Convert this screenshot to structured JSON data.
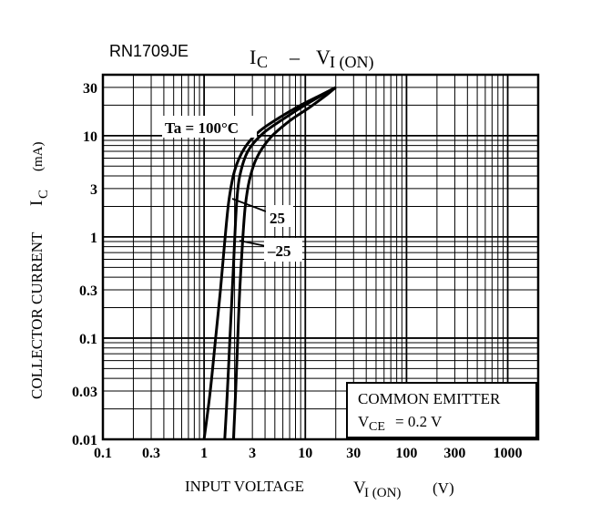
{
  "chart_data": {
    "type": "line",
    "part_number": "RN1709JE",
    "title": {
      "main_symbol": "I",
      "main_sub": "C",
      "separator": "–",
      "rhs_symbol": "V",
      "rhs_sub": "I (ON)"
    },
    "xlabel": {
      "text": "INPUT VOLTAGE",
      "symbol": "V",
      "sub": "I (ON)",
      "unit": "(V)"
    },
    "ylabel": {
      "text": "COLLECTOR CURRENT",
      "symbol": "I",
      "sub": "C",
      "unit": "(mA)"
    },
    "xscale": "log",
    "yscale": "log",
    "xlim": [
      0.1,
      2000
    ],
    "ylim": [
      0.01,
      40
    ],
    "x_ticks": [
      {
        "value": 0.1,
        "label": "0.1"
      },
      {
        "value": 0.3,
        "label": "0.3"
      },
      {
        "value": 1,
        "label": "1"
      },
      {
        "value": 3,
        "label": "3"
      },
      {
        "value": 10,
        "label": "10"
      },
      {
        "value": 30,
        "label": "30"
      },
      {
        "value": 100,
        "label": "100"
      },
      {
        "value": 300,
        "label": "300"
      },
      {
        "value": 1000,
        "label": "1000"
      }
    ],
    "y_ticks": [
      {
        "value": 0.01,
        "label": "0.01"
      },
      {
        "value": 0.03,
        "label": "0.03"
      },
      {
        "value": 0.1,
        "label": "0.1"
      },
      {
        "value": 0.3,
        "label": "0.3"
      },
      {
        "value": 1,
        "label": "1"
      },
      {
        "value": 3,
        "label": "3"
      },
      {
        "value": 10,
        "label": "10"
      },
      {
        "value": 30,
        "label": "30"
      }
    ],
    "grid": true,
    "series": [
      {
        "name": "100°C",
        "label": "Ta = 100°C",
        "x": [
          1.0,
          1.15,
          1.3,
          1.45,
          1.6,
          1.75,
          2.0,
          2.5,
          3.5,
          5.5,
          9,
          14,
          20
        ],
        "y": [
          0.01,
          0.03,
          0.1,
          0.3,
          0.9,
          2.2,
          4.5,
          7.5,
          11,
          15,
          20,
          25,
          30
        ]
      },
      {
        "name": "25°C",
        "label": "25",
        "x": [
          1.6,
          1.7,
          1.8,
          1.9,
          2.0,
          2.1,
          2.25,
          2.7,
          3.8,
          6,
          9.5,
          14.5,
          20
        ],
        "y": [
          0.01,
          0.03,
          0.1,
          0.3,
          0.9,
          2.2,
          4.0,
          7.0,
          10.5,
          14.5,
          19.5,
          25,
          30
        ]
      },
      {
        "name": "-25°C",
        "label": "–25",
        "x": [
          1.95,
          2.05,
          2.15,
          2.25,
          2.4,
          2.55,
          2.8,
          3.3,
          4.5,
          7,
          11,
          16,
          20
        ],
        "y": [
          0.01,
          0.03,
          0.1,
          0.3,
          0.9,
          2.0,
          3.6,
          6.0,
          9.5,
          14,
          19,
          25,
          30
        ]
      }
    ],
    "annotations": {
      "curve_label_main": "Ta = 100°C",
      "curve_label_25": "25",
      "curve_label_m25": "–25"
    },
    "legend_box": {
      "line1": "COMMON EMITTER",
      "line2_symbol": "V",
      "line2_sub": "CE",
      "line2_value": "= 0.2 V"
    }
  }
}
